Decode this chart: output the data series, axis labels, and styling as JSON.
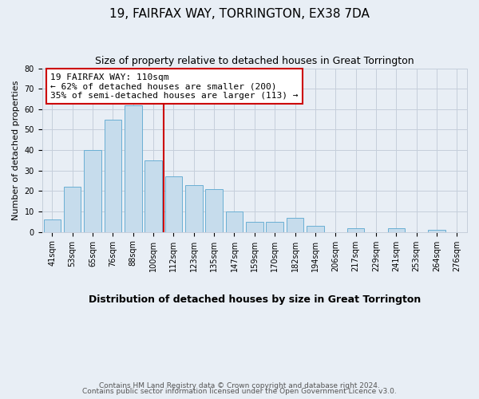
{
  "title": "19, FAIRFAX WAY, TORRINGTON, EX38 7DA",
  "subtitle": "Size of property relative to detached houses in Great Torrington",
  "xlabel": "Distribution of detached houses by size in Great Torrington",
  "ylabel": "Number of detached properties",
  "footer_line1": "Contains HM Land Registry data © Crown copyright and database right 2024.",
  "footer_line2": "Contains public sector information licensed under the Open Government Licence v3.0.",
  "bar_labels": [
    "41sqm",
    "53sqm",
    "65sqm",
    "76sqm",
    "88sqm",
    "100sqm",
    "112sqm",
    "123sqm",
    "135sqm",
    "147sqm",
    "159sqm",
    "170sqm",
    "182sqm",
    "194sqm",
    "206sqm",
    "217sqm",
    "229sqm",
    "241sqm",
    "253sqm",
    "264sqm",
    "276sqm"
  ],
  "bar_values": [
    6,
    22,
    40,
    55,
    62,
    35,
    27,
    23,
    21,
    10,
    5,
    5,
    7,
    3,
    0,
    2,
    0,
    2,
    0,
    1,
    0
  ],
  "bar_color": "#c6dcec",
  "bar_edge_color": "#6aafd4",
  "ann_line1": "19 FAIRFAX WAY: 110sqm",
  "ann_line2": "← 62% of detached houses are smaller (200)",
  "ann_line3": "35% of semi-detached houses are larger (113) →",
  "vline_x_index": 5.5,
  "vline_color": "#cc0000",
  "ylim": [
    0,
    80
  ],
  "yticks": [
    0,
    10,
    20,
    30,
    40,
    50,
    60,
    70,
    80
  ],
  "bg_color": "#e8eef5",
  "plot_bg_color": "#e8eef5",
  "grid_color": "#c5cfdb",
  "title_fontsize": 11,
  "subtitle_fontsize": 9,
  "xlabel_fontsize": 9,
  "ylabel_fontsize": 8,
  "tick_fontsize": 7,
  "annotation_fontsize": 8,
  "footer_fontsize": 6.5
}
